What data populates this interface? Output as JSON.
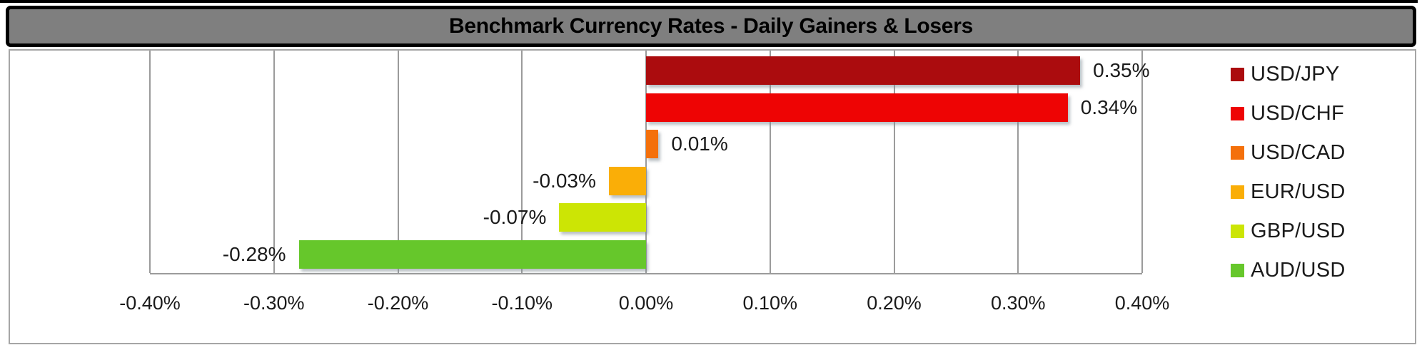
{
  "title": "Benchmark Currency Rates - Daily Gainers & Losers",
  "chart_data": {
    "type": "bar",
    "orientation": "horizontal",
    "title": "Benchmark Currency Rates - Daily Gainers & Losers",
    "categories": [
      "USD/JPY",
      "USD/CHF",
      "USD/CAD",
      "EUR/USD",
      "GBP/USD",
      "AUD/USD"
    ],
    "values_pct": [
      0.35,
      0.34,
      0.01,
      -0.03,
      -0.07,
      -0.28
    ],
    "data_labels": [
      "0.35%",
      "0.34%",
      "0.01%",
      "-0.03%",
      "-0.07%",
      "-0.28%"
    ],
    "series_colors": [
      "#AB0C0E",
      "#EE0404",
      "#F4700B",
      "#FAAE07",
      "#CCE505",
      "#66C72B"
    ],
    "x_axis": {
      "min": -0.4,
      "max": 0.4,
      "step": 0.1,
      "tick_labels": [
        "-0.40%",
        "-0.30%",
        "-0.20%",
        "-0.10%",
        "0.00%",
        "0.10%",
        "0.20%",
        "0.30%",
        "0.40%"
      ]
    },
    "grid": "vertical-on",
    "legend_position": "right"
  },
  "styles": {
    "title_bar_bg": "#7F7F7F",
    "title_text": "#000000",
    "frame_border": "#A6A6A6",
    "gridline": "#9B9B9B",
    "background": "#FFFFFF"
  }
}
